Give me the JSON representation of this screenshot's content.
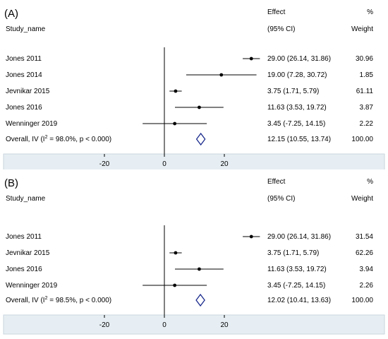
{
  "chart_data": [
    {
      "type": "forest",
      "panel_label": "(A)",
      "header": {
        "effect_top": "Effect",
        "effect_bottom": "(95% CI)",
        "weight_top": "%",
        "weight_bottom": "Weight",
        "study_col": "Study_name"
      },
      "xlim": [
        -40,
        40
      ],
      "xticks": [
        -20,
        0,
        20
      ],
      "studies": [
        {
          "name": "Jones 2011",
          "est": 29.0,
          "lo": 26.14,
          "hi": 31.86,
          "ci_text": "29.00 (26.14, 31.86)",
          "weight": "30.96"
        },
        {
          "name": "Jones 2014",
          "est": 19.0,
          "lo": 7.28,
          "hi": 30.72,
          "ci_text": "19.00 (7.28, 30.72)",
          "weight": "1.85"
        },
        {
          "name": "Jevnikar 2015",
          "est": 3.75,
          "lo": 1.71,
          "hi": 5.79,
          "ci_text": "3.75 (1.71, 5.79)",
          "weight": "61.11"
        },
        {
          "name": "Jones 2016",
          "est": 11.63,
          "lo": 3.53,
          "hi": 19.72,
          "ci_text": "11.63 (3.53, 19.72)",
          "weight": "3.87"
        },
        {
          "name": "Wenninger 2019",
          "est": 3.45,
          "lo": -7.25,
          "hi": 14.15,
          "ci_text": "3.45 (-7.25, 14.15)",
          "weight": "2.22"
        }
      ],
      "overall": {
        "label_pre": "Overall, IV (I",
        "label_sup": "2",
        "label_post": " = 98.0%, p < 0.000)",
        "est": 12.15,
        "lo": 10.55,
        "hi": 13.74,
        "ci_text": "12.15 (10.55, 13.74)",
        "weight": "100.00"
      }
    },
    {
      "type": "forest",
      "panel_label": "(B)",
      "header": {
        "effect_top": "Effect",
        "effect_bottom": "(95% CI)",
        "weight_top": "%",
        "weight_bottom": "Weight",
        "study_col": "Study_name"
      },
      "xlim": [
        -40,
        40
      ],
      "xticks": [
        -20,
        0,
        20
      ],
      "studies": [
        {
          "name": "Jones 2011",
          "est": 29.0,
          "lo": 26.14,
          "hi": 31.86,
          "ci_text": "29.00 (26.14, 31.86)",
          "weight": "31.54"
        },
        {
          "name": "Jevnikar 2015",
          "est": 3.75,
          "lo": 1.71,
          "hi": 5.79,
          "ci_text": "3.75 (1.71, 5.79)",
          "weight": "62.26"
        },
        {
          "name": "Jones 2016",
          "est": 11.63,
          "lo": 3.53,
          "hi": 19.72,
          "ci_text": "11.63 (3.53, 19.72)",
          "weight": "3.94"
        },
        {
          "name": "Wenninger 2019",
          "est": 3.45,
          "lo": -7.25,
          "hi": 14.15,
          "ci_text": "3.45 (-7.25, 14.15)",
          "weight": "2.26"
        }
      ],
      "overall": {
        "label_pre": "Overall, IV (I",
        "label_sup": "2",
        "label_post": " = 98.5%, p < 0.000)",
        "est": 12.02,
        "lo": 10.41,
        "hi": 13.63,
        "ci_text": "12.02 (10.41, 13.63)",
        "weight": "100.00"
      }
    }
  ],
  "colors": {
    "axis_band": "#e6eef3",
    "band_border": "#c9d6de",
    "diamond": "#1a2a8c",
    "line": "#000000"
  }
}
